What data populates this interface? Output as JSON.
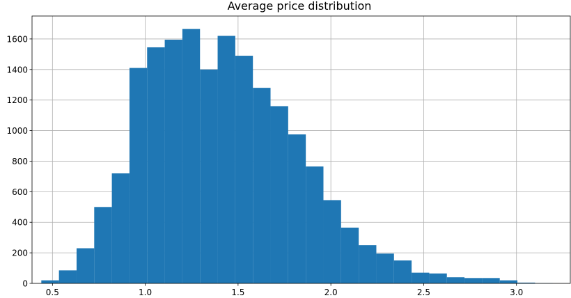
{
  "chart_data": {
    "type": "bar",
    "title": "Average price distribution",
    "xlabel": "",
    "ylabel": "",
    "xlim": [
      0.39,
      3.29
    ],
    "ylim": [
      0,
      1750
    ],
    "grid": true,
    "bar_color": "#1f77b4",
    "grid_color": "#b0b0b0",
    "xticks": [
      0.5,
      1.0,
      1.5,
      2.0,
      2.5,
      3.0
    ],
    "xtick_labels": [
      "0.5",
      "1.0",
      "1.5",
      "2.0",
      "2.5",
      "3.0"
    ],
    "yticks": [
      0,
      200,
      400,
      600,
      800,
      1000,
      1200,
      1400,
      1600
    ],
    "ytick_labels": [
      "0",
      "200",
      "400",
      "600",
      "800",
      "1000",
      "1200",
      "1400",
      "1600"
    ],
    "bin_edges": [
      0.44,
      0.535,
      0.63,
      0.725,
      0.82,
      0.915,
      1.01,
      1.105,
      1.2,
      1.295,
      1.39,
      1.485,
      1.58,
      1.675,
      1.77,
      1.865,
      1.96,
      2.055,
      2.15,
      2.245,
      2.34,
      2.435,
      2.53,
      2.625,
      2.72,
      2.815,
      2.91,
      3.005,
      3.1,
      3.195
    ],
    "values": [
      20,
      85,
      230,
      500,
      720,
      1410,
      1545,
      1595,
      1665,
      1400,
      1620,
      1490,
      1280,
      1160,
      975,
      765,
      545,
      365,
      250,
      195,
      150,
      70,
      65,
      40,
      35,
      35,
      20,
      5,
      2
    ]
  }
}
